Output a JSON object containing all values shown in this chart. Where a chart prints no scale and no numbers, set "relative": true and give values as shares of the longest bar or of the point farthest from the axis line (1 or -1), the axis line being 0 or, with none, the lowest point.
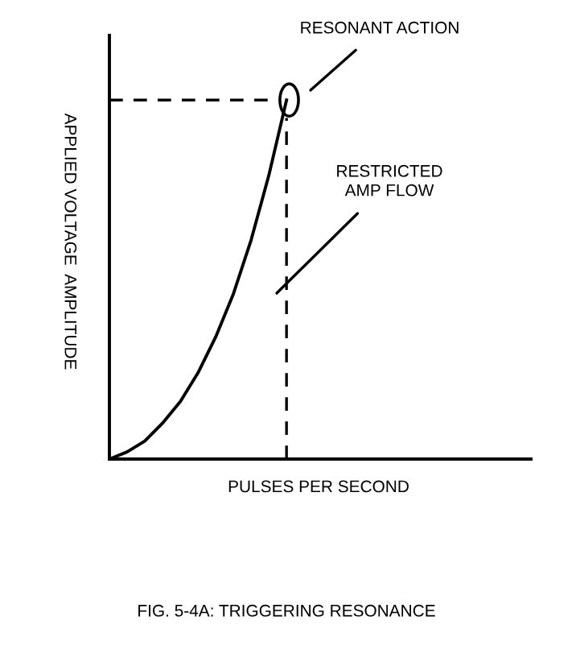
{
  "chart_data": {
    "type": "line",
    "relative": true,
    "categories": [
      null,
      null,
      null,
      null,
      null,
      null,
      null,
      null,
      null,
      null,
      null,
      null,
      null,
      null,
      null,
      null,
      null,
      null,
      null,
      null,
      null,
      null,
      null,
      null
    ],
    "series": [
      {
        "color": "#000000",
        "values": [
          0,
          0.02,
          0.05,
          0.1,
          0.16,
          0.24,
          0.34,
          0.46,
          0.61,
          0.79,
          1.0,
          null,
          null,
          null,
          null,
          null,
          null,
          null,
          null,
          null,
          null,
          null,
          null,
          null
        ]
      }
    ],
    "xlabel": "PULSES PER SECOND",
    "ylabel": "APPLIED VOLTAGE  AMPLITUDE",
    "ref_lines": [
      {
        "axis": "y",
        "value": 1,
        "line_style": "dashed",
        "color": "#000000"
      }
    ],
    "annotations": [
      "RESONANT ACTION",
      "RESTRICTED\nAMP FLOW",
      "FIG. 5-4A: TRIGGERING RESONANCE"
    ],
    "legend": false
  }
}
